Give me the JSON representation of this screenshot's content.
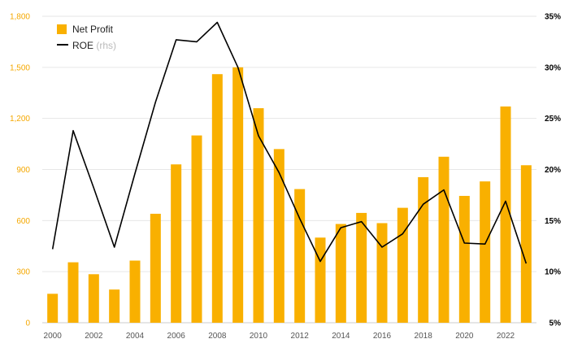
{
  "chart_data": {
    "type": "bar",
    "x": [
      2000,
      2001,
      2002,
      2003,
      2004,
      2005,
      2006,
      2007,
      2008,
      2009,
      2010,
      2011,
      2012,
      2013,
      2014,
      2015,
      2016,
      2017,
      2018,
      2019,
      2020,
      2021,
      2022,
      2023
    ],
    "series": [
      {
        "name": "Net Profit",
        "type": "bar",
        "axis": "left",
        "color": "#f9b000",
        "values": [
          170,
          355,
          285,
          195,
          365,
          640,
          930,
          1100,
          1460,
          1500,
          1260,
          1020,
          785,
          500,
          580,
          645,
          585,
          675,
          855,
          975,
          745,
          830,
          1270,
          925
        ]
      },
      {
        "name": "ROE",
        "legend_suffix": "(rhs)",
        "type": "line",
        "axis": "right",
        "color": "#000000",
        "values": [
          12.2,
          23.8,
          18.2,
          12.4,
          19.6,
          26.6,
          32.7,
          32.5,
          34.4,
          30.0,
          23.3,
          19.7,
          15.2,
          11.0,
          14.3,
          14.9,
          12.4,
          13.7,
          16.6,
          18.0,
          12.8,
          12.7,
          16.9,
          10.8
        ]
      }
    ],
    "y_left": {
      "min": 0,
      "max": 1800,
      "ticks": [
        "0",
        "300",
        "600",
        "900",
        "1,200",
        "1,500",
        "1,800"
      ],
      "color": "#f5a800"
    },
    "y_right": {
      "min": 5,
      "max": 35,
      "ticks": [
        "5%",
        "10%",
        "15%",
        "20%",
        "25%",
        "30%",
        "35%"
      ]
    },
    "x_tick_labels": [
      "2000",
      "2002",
      "2004",
      "2006",
      "2008",
      "2010",
      "2012",
      "2014",
      "2016",
      "2018",
      "2020",
      "2022"
    ],
    "grid": true,
    "legend_position": "top-left"
  }
}
